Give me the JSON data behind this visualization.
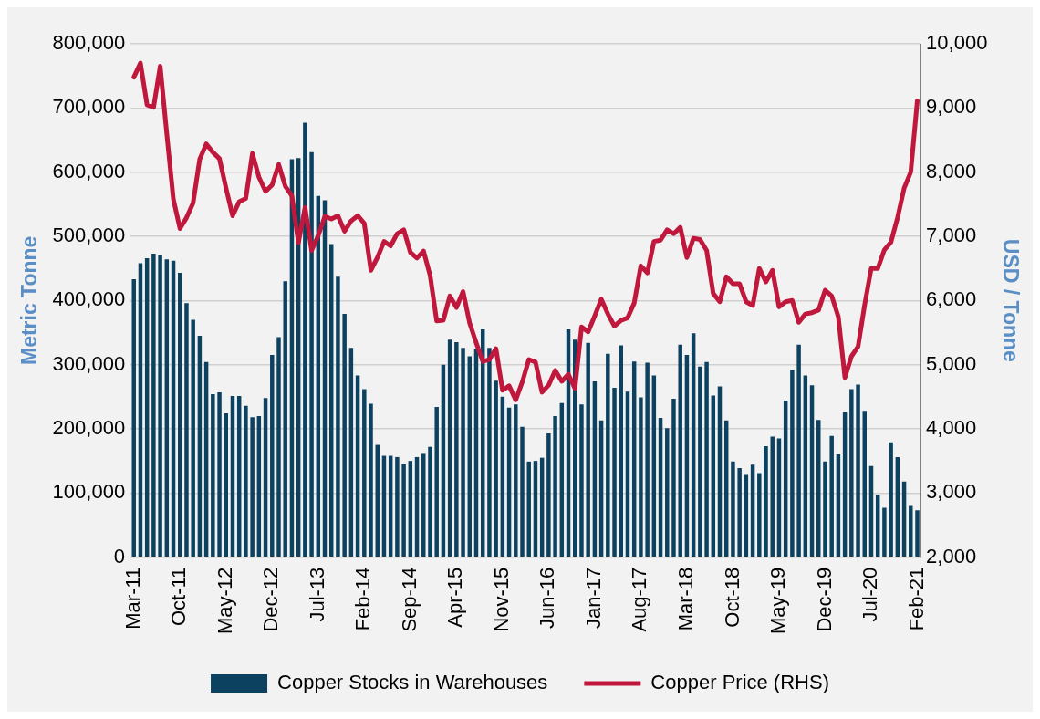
{
  "chart_data": {
    "type": "bar",
    "ylabel": "Metric Tonne",
    "y2label": "USD / Tonne",
    "categories": [
      "Mar-11",
      null,
      null,
      null,
      null,
      null,
      null,
      "Oct-11",
      null,
      null,
      null,
      null,
      null,
      null,
      "May-12",
      null,
      null,
      null,
      null,
      null,
      null,
      "Dec-12",
      null,
      null,
      null,
      null,
      null,
      null,
      "Jul-13",
      null,
      null,
      null,
      null,
      null,
      null,
      "Feb-14",
      null,
      null,
      null,
      null,
      null,
      null,
      "Sep-14",
      null,
      null,
      null,
      null,
      null,
      null,
      "Apr-15",
      null,
      null,
      null,
      null,
      null,
      null,
      "Nov-15",
      null,
      null,
      null,
      null,
      null,
      null,
      "Jun-16",
      null,
      null,
      null,
      null,
      null,
      null,
      "Jan-17",
      null,
      null,
      null,
      null,
      null,
      null,
      "Aug-17",
      null,
      null,
      null,
      null,
      null,
      null,
      "Mar-18",
      null,
      null,
      null,
      null,
      null,
      null,
      "Oct-18",
      null,
      null,
      null,
      null,
      null,
      null,
      "May-19",
      null,
      null,
      null,
      null,
      null,
      null,
      "Dec-19",
      null,
      null,
      null,
      null,
      null,
      null,
      "Jul-20",
      null,
      null,
      null,
      null,
      null,
      null,
      "Feb-21"
    ],
    "series": [
      {
        "name": "Copper Stocks in Warehouses",
        "color": "#0c4160",
        "values": [
          433000,
          458000,
          466000,
          473000,
          470000,
          464000,
          462000,
          443000,
          396000,
          370000,
          345000,
          304000,
          254000,
          257000,
          224000,
          251000,
          251000,
          236000,
          218000,
          220000,
          248000,
          315000,
          343000,
          430000,
          620000,
          622000,
          677000,
          631000,
          563000,
          556000,
          488000,
          437000,
          379000,
          326000,
          283000,
          262000,
          239000,
          175000,
          158000,
          158000,
          156000,
          145000,
          150000,
          156000,
          161000,
          172000,
          234000,
          300000,
          339000,
          335000,
          326000,
          313000,
          325000,
          355000,
          326000,
          275000,
          250000,
          233000,
          238000,
          203000,
          149000,
          150000,
          155000,
          193000,
          220000,
          240000,
          355000,
          339000,
          238000,
          334000,
          274000,
          213000,
          317000,
          264000,
          330000,
          258000,
          305000,
          249000,
          303000,
          283000,
          217000,
          201000,
          247000,
          331000,
          315000,
          349000,
          297000,
          304000,
          252000,
          266000,
          213000,
          149000,
          139000,
          128000,
          144000,
          131000,
          173000,
          188000,
          185000,
          244000,
          292000,
          331000,
          283000,
          268000,
          214000,
          149000,
          189000,
          160000,
          226000,
          262000,
          269000,
          228000,
          142000,
          97000,
          77000,
          179000,
          156000,
          118000,
          80000,
          73000
        ]
      },
      {
        "name": "Copper Price (RHS)",
        "type": "line",
        "axis": "y2",
        "color": "#c0183c",
        "values": [
          9480,
          9700,
          9050,
          9010,
          9650,
          8600,
          7580,
          7120,
          7290,
          7520,
          8200,
          8440,
          8310,
          8210,
          7750,
          7320,
          7540,
          7590,
          8290,
          7920,
          7700,
          7800,
          8120,
          7780,
          7630,
          6900,
          7450,
          6780,
          7010,
          7310,
          7270,
          7320,
          7080,
          7240,
          7320,
          7200,
          6470,
          6670,
          6920,
          6850,
          7040,
          7100,
          6750,
          6660,
          6770,
          6390,
          5680,
          5690,
          6070,
          5890,
          6140,
          5650,
          5340,
          5050,
          5080,
          5250,
          4600,
          4670,
          4450,
          4730,
          5080,
          5040,
          4570,
          4680,
          4910,
          4740,
          4850,
          4630,
          5590,
          5510,
          5760,
          6020,
          5790,
          5600,
          5690,
          5730,
          5960,
          6540,
          6430,
          6920,
          6940,
          7100,
          7040,
          7140,
          6670,
          6970,
          6950,
          6780,
          6110,
          5980,
          6370,
          6260,
          6260,
          5980,
          5920,
          6500,
          6290,
          6470,
          5900,
          5980,
          6000,
          5660,
          5790,
          5810,
          5850,
          6160,
          6070,
          5750,
          4800,
          5130,
          5280,
          5930,
          6500,
          6500,
          6790,
          6910,
          7290,
          7750,
          8000,
          9110
        ]
      }
    ],
    "ylim": [
      0,
      800000
    ],
    "yticks": [
      0,
      {
        "value": 100000,
        "label": "100,000"
      },
      {
        "value": 200000,
        "label": "200,000"
      },
      {
        "value": 300000,
        "label": "300,000"
      },
      {
        "value": 400000,
        "label": "400,000"
      },
      {
        "value": 500000,
        "label": "500,000"
      },
      {
        "value": 600000,
        "label": "600,000"
      },
      {
        "value": 700000,
        "label": "700,000"
      },
      {
        "value": 800000,
        "label": "800,000"
      }
    ],
    "y2lim": [
      2000,
      10000
    ],
    "y2ticks": [
      {
        "value": 2000,
        "label": "2,000"
      },
      {
        "value": 3000,
        "label": "3,000"
      },
      {
        "value": 4000,
        "label": "4,000"
      },
      {
        "value": 5000,
        "label": "5,000"
      },
      {
        "value": 6000,
        "label": "6,000"
      },
      {
        "value": 7000,
        "label": "7,000"
      },
      {
        "value": 8000,
        "label": "8,000"
      },
      {
        "value": 9000,
        "label": "9,000"
      },
      {
        "value": 10000,
        "label": "10,000"
      }
    ],
    "grid": "y",
    "legend": "bottom",
    "marker": "none"
  }
}
